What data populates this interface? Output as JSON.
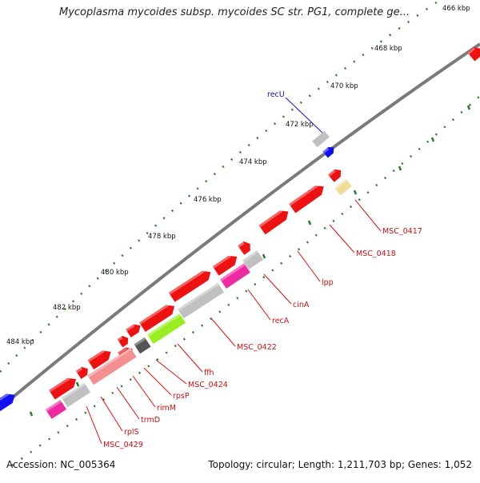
{
  "title": "Mycoplasma mycoides subsp. mycoides SC str. PG1, complete ge...",
  "footer": {
    "accession": "Accession: NC_005364",
    "summary": "Topology: circular; Length: 1,211,703 bp; Genes: 1,052"
  },
  "ticks": [
    "466 kbp",
    "468 kbp",
    "470 kbp",
    "472 kbp",
    "474 kbp",
    "476 kbp",
    "478 kbp",
    "480 kbp",
    "482 kbp",
    "484 kbp"
  ],
  "gene_labels": [
    "recU",
    "MSC_0417",
    "MSC_0418",
    "lpp",
    "cinA",
    "recA",
    "MSC_0422",
    "ffh",
    "MSC_0424",
    "rpsP",
    "rimM",
    "trmD",
    "rplS",
    "MSC_0429"
  ],
  "colors": {
    "backbone": "#808080",
    "tick": "#2a7a2a",
    "label_line": "#e01010",
    "label_text": "#cc1010",
    "recU": "#1010cc",
    "gene_red": "#ee1111",
    "gene_grey": "#c0c0c0",
    "gene_pink": "#ee2aa0",
    "gene_salmon": "#f49090",
    "gene_lime": "#99ee22",
    "gene_darkgrey": "#555555",
    "gene_yellow": "#eedd99",
    "gene_blue": "#1010ee"
  }
}
